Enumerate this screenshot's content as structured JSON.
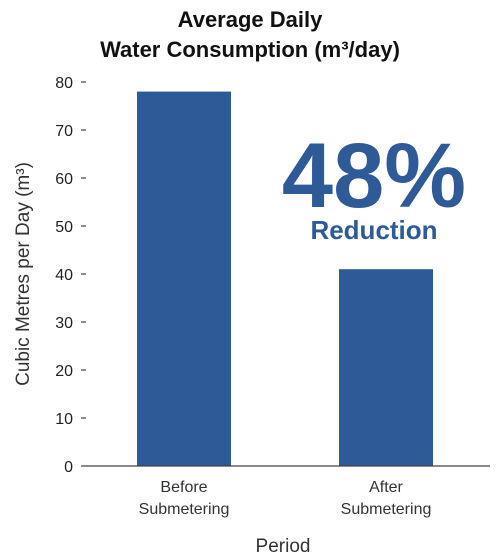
{
  "chart_data": {
    "type": "bar",
    "title_lines": [
      "Average Daily",
      "Water Consumption (m³/day)"
    ],
    "categories": [
      [
        "Before",
        "Submetering"
      ],
      [
        "After",
        "Submetering"
      ]
    ],
    "values": [
      78,
      41
    ],
    "xlabel": "Period",
    "ylabel": "Cubic Metres per Day (m³)",
    "ylim": [
      0,
      80
    ],
    "yticks": [
      0,
      10,
      20,
      30,
      40,
      50,
      60,
      70,
      80
    ],
    "grid": false,
    "bar_color": "#2e5a98",
    "annotation": {
      "value": "48%",
      "caption": "Reduction",
      "color": "#2e5a98"
    }
  }
}
